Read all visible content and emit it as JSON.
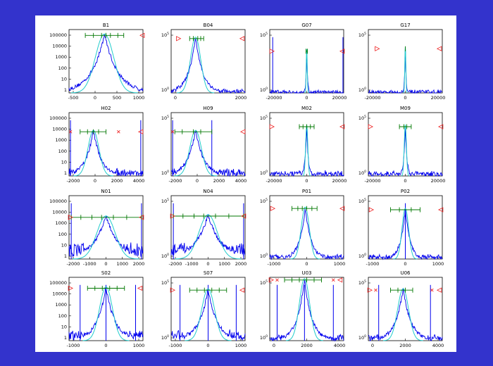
{
  "chart_data": [
    {
      "title": "B1",
      "type": "line",
      "xticks": [
        "-500",
        "0",
        "500",
        "1000"
      ],
      "yticks": [
        "100000",
        "10000",
        "1000",
        "100",
        "10",
        "1"
      ],
      "log": true,
      "center": 0.48,
      "pk": 0.93,
      "span": 0.5,
      "floor": 0.05,
      "lines": [],
      "green": [
        0.22,
        0.33,
        0.44,
        0.5,
        0.56,
        0.66,
        0.74
      ],
      "marks": [
        {
          "x": 0.99,
          "t": "tri"
        }
      ]
    },
    {
      "title": "B04",
      "type": "line",
      "xticks": [
        "0",
        "2000"
      ],
      "yticks": [
        "10^5",
        "10^0"
      ],
      "log": false,
      "center": 0.33,
      "pk": 0.88,
      "span": 0.28,
      "floor": 0.04,
      "lines": [],
      "green": [
        0.25,
        0.3,
        0.36,
        0.4,
        0.44
      ],
      "marks": [
        {
          "x": 0.1,
          "t": "tri"
        },
        {
          "x": 0.96,
          "t": "tri"
        }
      ]
    },
    {
      "title": "G07",
      "type": "line",
      "xticks": [
        "-20000",
        "0",
        "20000"
      ],
      "yticks": [
        "10^5",
        "10^0"
      ],
      "log": false,
      "center": 0.5,
      "pk": 0.68,
      "span": 0.03,
      "floor": 0.02,
      "lines": [
        0.04,
        0.99
      ],
      "green": [
        0.49,
        0.51
      ],
      "marks": [
        {
          "x": 0.03,
          "t": "tri"
        },
        {
          "x": 0.98,
          "t": "tri"
        }
      ]
    },
    {
      "title": "G17",
      "type": "line",
      "xticks": [
        "-20000",
        "0",
        "20000"
      ],
      "yticks": [
        "10^5",
        "10^0"
      ],
      "log": false,
      "center": 0.5,
      "pk": 0.72,
      "span": 0.03,
      "floor": 0.02,
      "lines": [],
      "green": [
        0.5
      ],
      "marks": [
        {
          "x": 0.12,
          "t": "tri"
        },
        {
          "x": 0.96,
          "t": "tri"
        }
      ]
    },
    {
      "title": "H02",
      "type": "line",
      "xticks": [
        "-2000",
        "0",
        "2000",
        "4000"
      ],
      "yticks": [
        "100000",
        "10000",
        "1000",
        "100",
        "10",
        "1"
      ],
      "log": true,
      "center": 0.33,
      "pk": 0.72,
      "span": 0.3,
      "floor": 0.1,
      "lines": [
        0.02,
        0.97
      ],
      "green": [
        0.15,
        0.25,
        0.33,
        0.4,
        0.5
      ],
      "marks": [
        {
          "x": 0.02,
          "t": "x"
        },
        {
          "x": 0.67,
          "t": "x"
        },
        {
          "x": 0.97,
          "t": "tri"
        }
      ]
    },
    {
      "title": "H09",
      "type": "line",
      "xticks": [
        "-2000",
        "0",
        "2000",
        "4000"
      ],
      "yticks": [
        "10^5",
        "10^0"
      ],
      "log": false,
      "center": 0.33,
      "pk": 0.72,
      "span": 0.32,
      "floor": 0.1,
      "lines": [
        0.02,
        0.55
      ],
      "green": [
        0.05,
        0.15,
        0.3,
        0.4,
        0.55
      ],
      "marks": [
        {
          "x": 0.02,
          "t": "x"
        },
        {
          "x": 0.97,
          "t": "tri"
        }
      ]
    },
    {
      "title": "M02",
      "type": "line",
      "xticks": [
        "-20000",
        "0",
        "20000"
      ],
      "yticks": [
        "10^5",
        "10^0"
      ],
      "log": false,
      "center": 0.5,
      "pk": 0.8,
      "span": 0.06,
      "floor": 0.06,
      "lines": [],
      "green": [
        0.4,
        0.45,
        0.5,
        0.55,
        0.6
      ],
      "marks": [
        {
          "x": 0.03,
          "t": "tri"
        },
        {
          "x": 0.98,
          "t": "tri"
        }
      ]
    },
    {
      "title": "M09",
      "type": "line",
      "xticks": [
        "-20000",
        "0",
        "20000"
      ],
      "yticks": [
        "10^5",
        "10^0"
      ],
      "log": false,
      "center": 0.5,
      "pk": 0.8,
      "span": 0.06,
      "floor": 0.06,
      "lines": [],
      "green": [
        0.42,
        0.48,
        0.52,
        0.58
      ],
      "marks": [
        {
          "x": 0.03,
          "t": "tri"
        },
        {
          "x": 0.98,
          "t": "tri"
        }
      ]
    },
    {
      "title": "N01",
      "type": "line",
      "xticks": [
        "-2000",
        "-1000",
        "0",
        "1000",
        "2000"
      ],
      "yticks": [
        "100000",
        "10000",
        "1000",
        "100",
        "10",
        "1"
      ],
      "log": true,
      "center": 0.5,
      "pk": 0.68,
      "span": 0.5,
      "floor": 0.25,
      "lines": [
        0.03,
        0.98
      ],
      "green": [
        0.03,
        0.16,
        0.31,
        0.44,
        0.6,
        0.78,
        0.98
      ],
      "marks": [
        {
          "x": 0.02,
          "t": "tri"
        },
        {
          "x": 0.98,
          "t": "tri"
        }
      ]
    },
    {
      "title": "N04",
      "type": "line",
      "xticks": [
        "-2000",
        "-1000",
        "0",
        "1000",
        "2000"
      ],
      "yticks": [
        "10^5",
        "10^0"
      ],
      "log": false,
      "center": 0.5,
      "pk": 0.7,
      "span": 0.5,
      "floor": 0.25,
      "lines": [
        0.03,
        0.98
      ],
      "green": [
        0.03,
        0.16,
        0.31,
        0.44,
        0.6,
        0.78,
        0.98
      ],
      "marks": [
        {
          "x": 0.02,
          "t": "tri"
        },
        {
          "x": 0.98,
          "t": "tri"
        }
      ]
    },
    {
      "title": "P01",
      "type": "line",
      "xticks": [
        "-1000",
        "0",
        "1000"
      ],
      "yticks": [
        "10^5",
        "10^0"
      ],
      "log": false,
      "center": 0.48,
      "pk": 0.82,
      "span": 0.22,
      "floor": 0.05,
      "lines": [],
      "green": [
        0.3,
        0.38,
        0.44,
        0.5,
        0.57,
        0.64
      ],
      "marks": [
        {
          "x": 0.04,
          "t": "tri"
        },
        {
          "x": 0.98,
          "t": "tri"
        }
      ]
    },
    {
      "title": "P02",
      "type": "line",
      "xticks": [
        "-1000",
        "0",
        "1000"
      ],
      "yticks": [
        "10^5",
        "10^0"
      ],
      "log": false,
      "center": 0.5,
      "pk": 0.8,
      "span": 0.18,
      "floor": 0.05,
      "lines": [
        0.5
      ],
      "green": [
        0.3,
        0.42,
        0.58,
        0.7
      ],
      "marks": [
        {
          "x": 0.04,
          "t": "tri"
        },
        {
          "x": 0.98,
          "t": "tri"
        }
      ]
    },
    {
      "title": "S02",
      "type": "line",
      "xticks": [
        "-1000",
        "0",
        "1000"
      ],
      "yticks": [
        "100000",
        "10000",
        "1000",
        "100",
        "10",
        "1"
      ],
      "log": true,
      "center": 0.5,
      "pk": 0.85,
      "span": 0.35,
      "floor": 0.15,
      "lines": [
        0.15,
        0.5,
        0.9
      ],
      "green": [
        0.25,
        0.35,
        0.45,
        0.55,
        0.65,
        0.75
      ],
      "marks": [
        {
          "x": 0.02,
          "t": "tri"
        },
        {
          "x": 0.96,
          "t": "tri"
        }
      ]
    },
    {
      "title": "S07",
      "type": "line",
      "xticks": [
        "-1000",
        "0",
        "1000"
      ],
      "yticks": [
        "10^5",
        "10^0"
      ],
      "log": false,
      "center": 0.5,
      "pk": 0.82,
      "span": 0.35,
      "floor": 0.15,
      "lines": [
        0.12,
        0.5,
        0.88
      ],
      "green": [
        0.25,
        0.35,
        0.45,
        0.55,
        0.65,
        0.75
      ],
      "marks": [
        {
          "x": 0.02,
          "t": "tri"
        },
        {
          "x": 0.96,
          "t": "tri"
        }
      ]
    },
    {
      "title": "U03",
      "type": "line",
      "xticks": [
        "0",
        "2000",
        "4000"
      ],
      "yticks": [
        "10^5",
        "10^0"
      ],
      "log": false,
      "center": 0.47,
      "pk": 0.98,
      "span": 0.28,
      "floor": 0.08,
      "lines": [
        0.1,
        0.47,
        0.86
      ],
      "green": [
        0.2,
        0.3,
        0.4,
        0.5,
        0.6,
        0.7
      ],
      "marks": [
        {
          "x": 0.02,
          "t": "tri"
        },
        {
          "x": 0.1,
          "t": "x"
        },
        {
          "x": 0.86,
          "t": "x"
        },
        {
          "x": 0.95,
          "t": "tri"
        }
      ]
    },
    {
      "title": "U06",
      "type": "line",
      "xticks": [
        "0",
        "2000",
        "4000"
      ],
      "yticks": [
        "10^5",
        "10^0"
      ],
      "log": false,
      "center": 0.47,
      "pk": 0.82,
      "span": 0.3,
      "floor": 0.08,
      "lines": [
        0.14,
        0.84
      ],
      "green": [
        0.3,
        0.4,
        0.5,
        0.6
      ],
      "marks": [
        {
          "x": 0.02,
          "t": "tri"
        },
        {
          "x": 0.1,
          "t": "x"
        },
        {
          "x": 0.86,
          "t": "x"
        },
        {
          "x": 0.96,
          "t": "tri"
        }
      ]
    }
  ],
  "colors": {
    "background": "#3333cc",
    "panel": "#ffffff",
    "histogram": "#0000ee",
    "fit": "#22cccc",
    "markers": "#007700",
    "limits": "#ee2222"
  }
}
